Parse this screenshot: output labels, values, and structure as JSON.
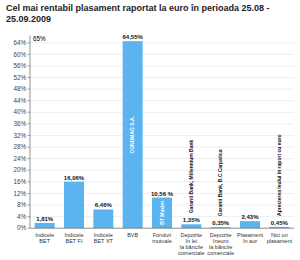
{
  "chart_data": {
    "type": "bar",
    "title": "Cel mai rentabil plasament raportat la euro în perioada 25.08 - 25.09.2009",
    "categories": [
      "Indicele\nBET",
      "Indicele\nBET FI",
      "Indicele\nBET XT",
      "BVB",
      "Fonduri\nmutuale",
      "Depozite\nîn lei\nla băncile\ncomerciale",
      "Depozite\nîneuro\nla băncile\ncomerciale",
      "Plasament\nîn aur",
      "Nici un\nplasament"
    ],
    "values": [
      1.81,
      16.06,
      6.46,
      64.55,
      10.56,
      1.35,
      0.35,
      2.43,
      0.45
    ],
    "value_labels": [
      "1,81%",
      "16,06%",
      "6,46%",
      "64,55%",
      "10,56 %",
      "1,35%",
      "0,35%",
      "2,43%",
      "0,45%"
    ],
    "sublabels": [
      null,
      null,
      null,
      "CONDMAG S.A.",
      "BT Maxim",
      "Garanti Bank, Millennium Bank",
      "Garanti Bank, B.C.Carpatica",
      null,
      "Aprecierea leului în raport cu euro"
    ],
    "annotations": [
      {
        "text": "65%"
      }
    ],
    "color": "#5ab4f0",
    "ylim": [
      0,
      66.5
    ],
    "yticks": [
      {
        "value": 0,
        "label": "0%"
      },
      {
        "value": 4,
        "label": "4%"
      },
      {
        "value": 8,
        "label": "8%"
      },
      {
        "value": 12,
        "label": "12%"
      },
      {
        "value": 16,
        "label": "16%"
      },
      {
        "value": 20,
        "label": "20%"
      },
      {
        "value": 24,
        "label": "24%"
      },
      {
        "value": 28,
        "label": "28%"
      },
      {
        "value": 32,
        "label": "32%"
      },
      {
        "value": 36,
        "label": "36%"
      },
      {
        "value": 40,
        "label": "40%"
      },
      {
        "value": 44,
        "label": "44%"
      },
      {
        "value": 48,
        "label": "48%"
      },
      {
        "value": 52,
        "label": "52%"
      },
      {
        "value": 56,
        "label": "56%"
      },
      {
        "value": 60,
        "label": "60%"
      },
      {
        "value": 64,
        "label": "64%"
      }
    ],
    "grid": true,
    "data_labels": true
  }
}
